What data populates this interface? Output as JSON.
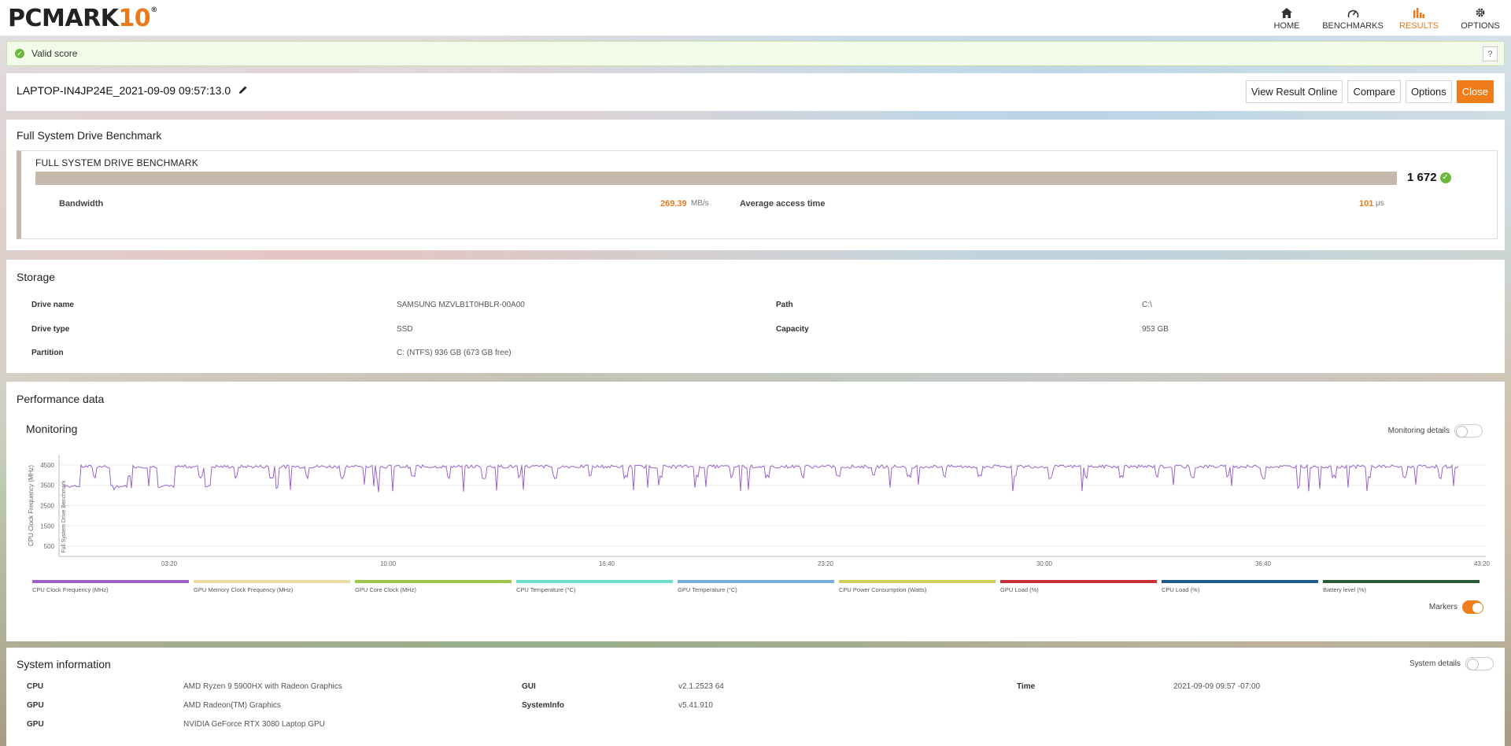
{
  "app": {
    "logo_text": "PCMARK",
    "logo_number": "10",
    "logo_reg": "®"
  },
  "nav": [
    {
      "label": "HOME",
      "icon": "home-icon"
    },
    {
      "label": "BENCHMARKS",
      "icon": "gauge-icon"
    },
    {
      "label": "RESULTS",
      "icon": "bar-chart-icon",
      "active": true
    },
    {
      "label": "OPTIONS",
      "icon": "gear-icon"
    }
  ],
  "status": {
    "text": "Valid score",
    "help": "?"
  },
  "result": {
    "name": "LAPTOP-IN4JP24E_2021-09-09 09:57:13.0",
    "buttons": {
      "view_online": "View Result Online",
      "compare": "Compare",
      "options": "Options",
      "close": "Close"
    }
  },
  "benchmark": {
    "section_title": "Full System Drive Benchmark",
    "label": "FULL SYSTEM DRIVE BENCHMARK",
    "score": "1 672",
    "bandwidth_label": "Bandwidth",
    "bandwidth_value": "269.39",
    "bandwidth_unit": "MB/s",
    "access_label": "Average access time",
    "access_value": "101",
    "access_unit": "μs"
  },
  "storage": {
    "title": "Storage",
    "drive_name_label": "Drive name",
    "drive_name": "SAMSUNG MZVLB1T0HBLR-00A00",
    "drive_type_label": "Drive type",
    "drive_type": "SSD",
    "partition_label": "Partition",
    "partition": "C: (NTFS) 936 GB (673 GB free)",
    "path_label": "Path",
    "path": "C:\\",
    "capacity_label": "Capacity",
    "capacity": "953 GB"
  },
  "performance": {
    "title": "Performance data",
    "monitoring_title": "Monitoring",
    "monitoring_details_label": "Monitoring details",
    "markers_label": "Markers"
  },
  "chart_data": {
    "type": "line",
    "ylabel": "CPU Clock Frequency (MHz)",
    "marker_label": "Full System Drive Benchmark",
    "yticks": [
      "4500",
      "3500",
      "2500",
      "1500",
      "500"
    ],
    "ytick_values": [
      4500,
      3500,
      2500,
      1500,
      500
    ],
    "ylim": [
      0,
      5000
    ],
    "xticks": [
      "03:20",
      "10:00",
      "16:40",
      "23:20",
      "30:00",
      "36:40",
      "43:20"
    ],
    "xlim_seconds": [
      0,
      2600
    ],
    "grid": true,
    "series": [
      {
        "name": "CPU Clock Frequency (MHz)",
        "color": "#9b62c9",
        "baseline": 4420,
        "low": 3450
      }
    ],
    "legend": [
      {
        "name": "CPU Clock Frequency (MHz)",
        "color": "#9b62c9"
      },
      {
        "name": "GPU Memory Clock Frequency (MHz)",
        "color": "#f1d9a3"
      },
      {
        "name": "GPU Core Clock (MHz)",
        "color": "#9ec64b"
      },
      {
        "name": "CPU Temperature (°C)",
        "color": "#6fe0cf"
      },
      {
        "name": "GPU Temperature (°C)",
        "color": "#7aafdc"
      },
      {
        "name": "CPU Power Consumption (Watts)",
        "color": "#d3cc5c"
      },
      {
        "name": "GPU Load (%)",
        "color": "#c8303a"
      },
      {
        "name": "CPU Load (%)",
        "color": "#1c5d8e"
      },
      {
        "name": "Battery level (%)",
        "color": "#2a5a2f"
      }
    ]
  },
  "system": {
    "title": "System information",
    "details_label": "System details",
    "rows": [
      {
        "label": "CPU",
        "value": "AMD Ryzen 9 5900HX with Radeon Graphics"
      },
      {
        "label": "GPU",
        "value": "AMD Radeon(TM) Graphics"
      },
      {
        "label": "GPU",
        "value": "NVIDIA GeForce RTX 3080 Laptop GPU"
      }
    ],
    "gui_label": "GUI",
    "gui": "v2.1.2523 64",
    "sysinfo_label": "SystemInfo",
    "sysinfo": "v5.41.910",
    "time_label": "Time",
    "time": "2021-09-09 09:57 -07:00"
  },
  "colors": {
    "accent": "#ee7d1a",
    "valid": "#6bb83a",
    "score_bar": "#c6b9ac"
  }
}
